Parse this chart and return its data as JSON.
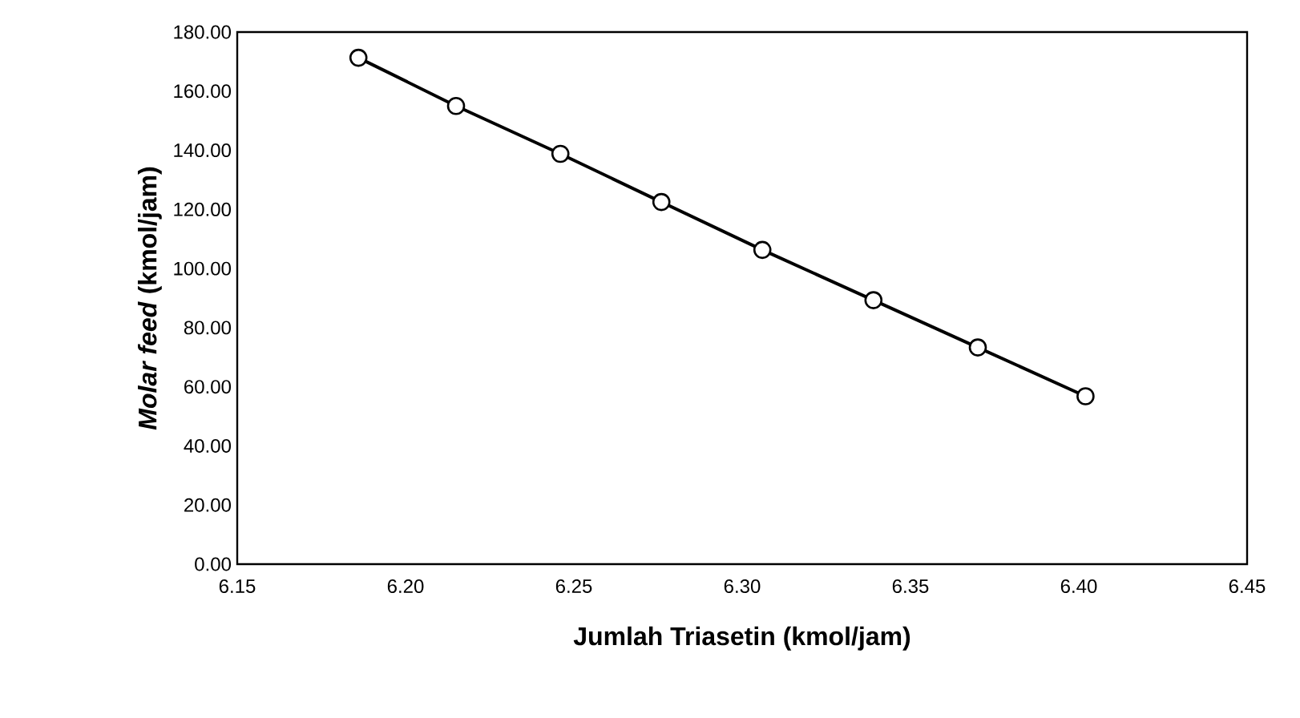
{
  "chart_data": {
    "type": "line",
    "xlabel": "Jumlah Triasetin (kmol/jam)",
    "ylabel": "*Molar feed* (kmol/jam)",
    "x": [
      6.186,
      6.215,
      6.246,
      6.276,
      6.306,
      6.339,
      6.37,
      6.402
    ],
    "series": [
      {
        "color": "#000000",
        "values": [
          171.3,
          155.0,
          138.8,
          122.5,
          106.3,
          89.3,
          73.3,
          56.8
        ]
      }
    ],
    "marker": "circle",
    "line_style": "solid",
    "xlim": [
      6.15,
      6.45
    ],
    "xticks": [
      {
        "value": 6.15,
        "label": "6.15"
      },
      {
        "value": 6.2,
        "label": "6.20"
      },
      {
        "value": 6.25,
        "label": "6.25"
      },
      {
        "value": 6.3,
        "label": "6.30"
      },
      {
        "value": 6.35,
        "label": "6.35"
      },
      {
        "value": 6.4,
        "label": "6.40"
      },
      {
        "value": 6.45,
        "label": "6.45"
      }
    ],
    "ylim": [
      0,
      180
    ],
    "yticks": [
      {
        "value": 0,
        "label": "0.00"
      },
      {
        "value": 20,
        "label": "20.00"
      },
      {
        "value": 40,
        "label": "40.00"
      },
      {
        "value": 60,
        "label": "60.00"
      },
      {
        "value": 80,
        "label": "80.00"
      },
      {
        "value": 100,
        "label": "100.00"
      },
      {
        "value": 120,
        "label": "120.00"
      },
      {
        "value": 140,
        "label": "140.00"
      },
      {
        "value": 160,
        "label": "160.00"
      },
      {
        "value": 180,
        "label": "180.00"
      }
    ]
  }
}
